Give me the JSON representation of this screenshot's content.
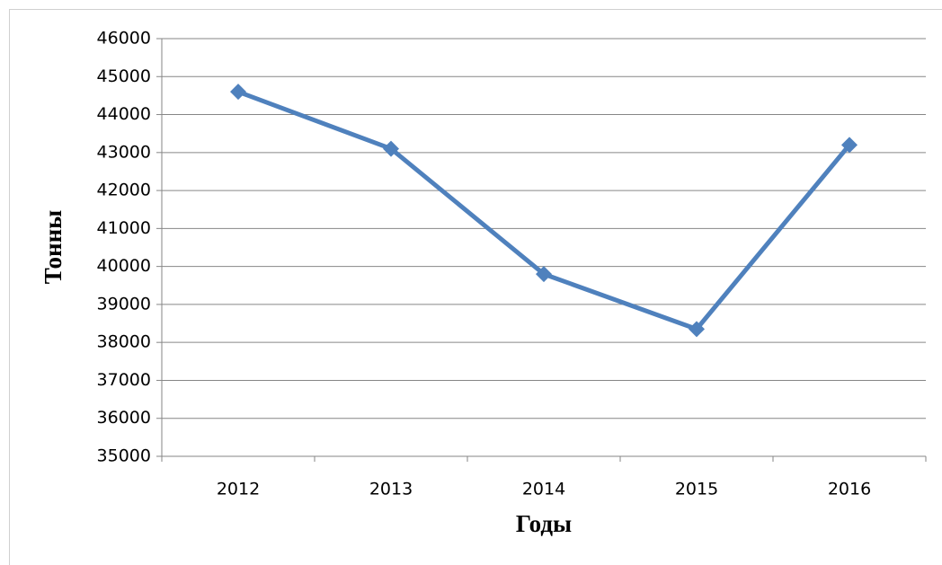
{
  "chart_data": {
    "type": "line",
    "x_label": "Годы",
    "y_label": "Тонны",
    "categories": [
      "2012",
      "2013",
      "2014",
      "2015",
      "2016"
    ],
    "series": [
      {
        "name": "Тонны",
        "color": "#4f81bd",
        "values": [
          44600,
          43100,
          39800,
          38350,
          43200
        ]
      }
    ],
    "ylim": [
      35000,
      46000
    ],
    "yticks": [
      35000,
      36000,
      37000,
      38000,
      39000,
      40000,
      41000,
      42000,
      43000,
      44000,
      45000,
      46000
    ],
    "grid": true
  }
}
